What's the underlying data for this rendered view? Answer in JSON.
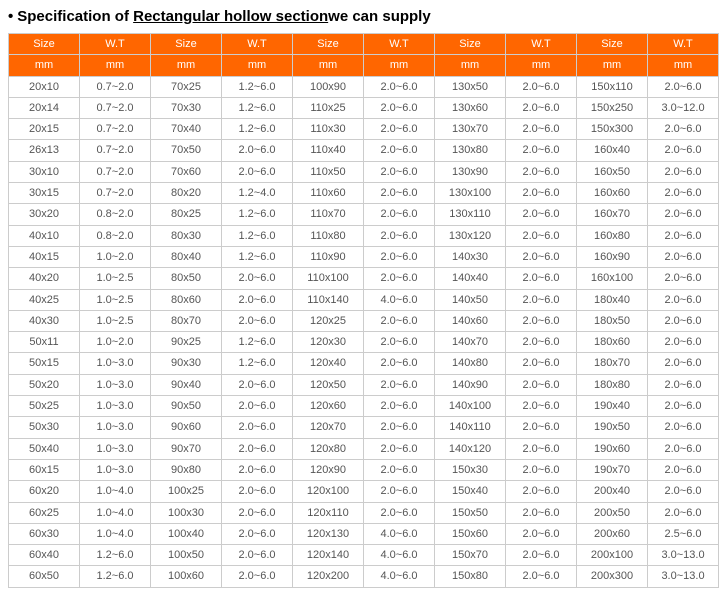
{
  "title_prefix": "Specification of ",
  "title_underline": "Rectangular hollow section",
  "title_suffix": "we can supply",
  "colors": {
    "header_bg": "#ff6600",
    "header_fg": "#ffffff",
    "border": "#cccccc",
    "cell_fg": "#555555"
  },
  "header_pair": {
    "size": "Size",
    "wt": "W.T"
  },
  "unit": "mm",
  "columns": [
    [
      {
        "s": "20x10",
        "w": "0.7~2.0"
      },
      {
        "s": "20x14",
        "w": "0.7~2.0"
      },
      {
        "s": "20x15",
        "w": "0.7~2.0"
      },
      {
        "s": "26x13",
        "w": "0.7~2.0"
      },
      {
        "s": "30x10",
        "w": "0.7~2.0"
      },
      {
        "s": "30x15",
        "w": "0.7~2.0"
      },
      {
        "s": "30x20",
        "w": "0.8~2.0"
      },
      {
        "s": "40x10",
        "w": "0.8~2.0"
      },
      {
        "s": "40x15",
        "w": "1.0~2.0"
      },
      {
        "s": "40x20",
        "w": "1.0~2.5"
      },
      {
        "s": "40x25",
        "w": "1.0~2.5"
      },
      {
        "s": "40x30",
        "w": "1.0~2.5"
      },
      {
        "s": "50x11",
        "w": "1.0~2.0"
      },
      {
        "s": "50x15",
        "w": "1.0~3.0"
      },
      {
        "s": "50x20",
        "w": "1.0~3.0"
      },
      {
        "s": "50x25",
        "w": "1.0~3.0"
      },
      {
        "s": "50x30",
        "w": "1.0~3.0"
      },
      {
        "s": "50x40",
        "w": "1.0~3.0"
      },
      {
        "s": "60x15",
        "w": "1.0~3.0"
      },
      {
        "s": "60x20",
        "w": "1.0~4.0"
      },
      {
        "s": "60x25",
        "w": "1.0~4.0"
      },
      {
        "s": "60x30",
        "w": "1.0~4.0"
      },
      {
        "s": "60x40",
        "w": "1.2~6.0"
      },
      {
        "s": "60x50",
        "w": "1.2~6.0"
      }
    ],
    [
      {
        "s": "70x25",
        "w": "1.2~6.0"
      },
      {
        "s": "70x30",
        "w": "1.2~6.0"
      },
      {
        "s": "70x40",
        "w": "1.2~6.0"
      },
      {
        "s": "70x50",
        "w": "2.0~6.0"
      },
      {
        "s": "70x60",
        "w": "2.0~6.0"
      },
      {
        "s": "80x20",
        "w": "1.2~4.0"
      },
      {
        "s": "80x25",
        "w": "1.2~6.0"
      },
      {
        "s": "80x30",
        "w": "1.2~6.0"
      },
      {
        "s": "80x40",
        "w": "1.2~6.0"
      },
      {
        "s": "80x50",
        "w": "2.0~6.0"
      },
      {
        "s": "80x60",
        "w": "2.0~6.0"
      },
      {
        "s": "80x70",
        "w": "2.0~6.0"
      },
      {
        "s": "90x25",
        "w": "1.2~6.0"
      },
      {
        "s": "90x30",
        "w": "1.2~6.0"
      },
      {
        "s": "90x40",
        "w": "2.0~6.0"
      },
      {
        "s": "90x50",
        "w": "2.0~6.0"
      },
      {
        "s": "90x60",
        "w": "2.0~6.0"
      },
      {
        "s": "90x70",
        "w": "2.0~6.0"
      },
      {
        "s": "90x80",
        "w": "2.0~6.0"
      },
      {
        "s": "100x25",
        "w": "2.0~6.0"
      },
      {
        "s": "100x30",
        "w": "2.0~6.0"
      },
      {
        "s": "100x40",
        "w": "2.0~6.0"
      },
      {
        "s": "100x50",
        "w": "2.0~6.0"
      },
      {
        "s": "100x60",
        "w": "2.0~6.0"
      }
    ],
    [
      {
        "s": "100x90",
        "w": "2.0~6.0"
      },
      {
        "s": "110x25",
        "w": "2.0~6.0"
      },
      {
        "s": "110x30",
        "w": "2.0~6.0"
      },
      {
        "s": "110x40",
        "w": "2.0~6.0"
      },
      {
        "s": "110x50",
        "w": "2.0~6.0"
      },
      {
        "s": "110x60",
        "w": "2.0~6.0"
      },
      {
        "s": "110x70",
        "w": "2.0~6.0"
      },
      {
        "s": "110x80",
        "w": "2.0~6.0"
      },
      {
        "s": "110x90",
        "w": "2.0~6.0"
      },
      {
        "s": "110x100",
        "w": "2.0~6.0"
      },
      {
        "s": "110x140",
        "w": "4.0~6.0"
      },
      {
        "s": "120x25",
        "w": "2.0~6.0"
      },
      {
        "s": "120x30",
        "w": "2.0~6.0"
      },
      {
        "s": "120x40",
        "w": "2.0~6.0"
      },
      {
        "s": "120x50",
        "w": "2.0~6.0"
      },
      {
        "s": "120x60",
        "w": "2.0~6.0"
      },
      {
        "s": "120x70",
        "w": "2.0~6.0"
      },
      {
        "s": "120x80",
        "w": "2.0~6.0"
      },
      {
        "s": "120x90",
        "w": "2.0~6.0"
      },
      {
        "s": "120x100",
        "w": "2.0~6.0"
      },
      {
        "s": "120x110",
        "w": "2.0~6.0"
      },
      {
        "s": "120x130",
        "w": "4.0~6.0"
      },
      {
        "s": "120x140",
        "w": "4.0~6.0"
      },
      {
        "s": "120x200",
        "w": "4.0~6.0"
      }
    ],
    [
      {
        "s": "130x50",
        "w": "2.0~6.0"
      },
      {
        "s": "130x60",
        "w": "2.0~6.0"
      },
      {
        "s": "130x70",
        "w": "2.0~6.0"
      },
      {
        "s": "130x80",
        "w": "2.0~6.0"
      },
      {
        "s": "130x90",
        "w": "2.0~6.0"
      },
      {
        "s": "130x100",
        "w": "2.0~6.0"
      },
      {
        "s": "130x110",
        "w": "2.0~6.0"
      },
      {
        "s": "130x120",
        "w": "2.0~6.0"
      },
      {
        "s": "140x30",
        "w": "2.0~6.0"
      },
      {
        "s": "140x40",
        "w": "2.0~6.0"
      },
      {
        "s": "140x50",
        "w": "2.0~6.0"
      },
      {
        "s": "140x60",
        "w": "2.0~6.0"
      },
      {
        "s": "140x70",
        "w": "2.0~6.0"
      },
      {
        "s": "140x80",
        "w": "2.0~6.0"
      },
      {
        "s": "140x90",
        "w": "2.0~6.0"
      },
      {
        "s": "140x100",
        "w": "2.0~6.0"
      },
      {
        "s": "140x110",
        "w": "2.0~6.0"
      },
      {
        "s": "140x120",
        "w": "2.0~6.0"
      },
      {
        "s": "150x30",
        "w": "2.0~6.0"
      },
      {
        "s": "150x40",
        "w": "2.0~6.0"
      },
      {
        "s": "150x50",
        "w": "2.0~6.0"
      },
      {
        "s": "150x60",
        "w": "2.0~6.0"
      },
      {
        "s": "150x70",
        "w": "2.0~6.0"
      },
      {
        "s": "150x80",
        "w": "2.0~6.0"
      }
    ],
    [
      {
        "s": "150x110",
        "w": "2.0~6.0"
      },
      {
        "s": "150x250",
        "w": "3.0~12.0"
      },
      {
        "s": "150x300",
        "w": "2.0~6.0"
      },
      {
        "s": "160x40",
        "w": "2.0~6.0"
      },
      {
        "s": "160x50",
        "w": "2.0~6.0"
      },
      {
        "s": "160x60",
        "w": "2.0~6.0"
      },
      {
        "s": "160x70",
        "w": "2.0~6.0"
      },
      {
        "s": "160x80",
        "w": "2.0~6.0"
      },
      {
        "s": "160x90",
        "w": "2.0~6.0"
      },
      {
        "s": "160x100",
        "w": "2.0~6.0"
      },
      {
        "s": "180x40",
        "w": "2.0~6.0"
      },
      {
        "s": "180x50",
        "w": "2.0~6.0"
      },
      {
        "s": "180x60",
        "w": "2.0~6.0"
      },
      {
        "s": "180x70",
        "w": "2.0~6.0"
      },
      {
        "s": "180x80",
        "w": "2.0~6.0"
      },
      {
        "s": "190x40",
        "w": "2.0~6.0"
      },
      {
        "s": "190x50",
        "w": "2.0~6.0"
      },
      {
        "s": "190x60",
        "w": "2.0~6.0"
      },
      {
        "s": "190x70",
        "w": "2.0~6.0"
      },
      {
        "s": "200x40",
        "w": "2.0~6.0"
      },
      {
        "s": "200x50",
        "w": "2.0~6.0"
      },
      {
        "s": "200x60",
        "w": "2.5~6.0"
      },
      {
        "s": "200x100",
        "w": "3.0~13.0"
      },
      {
        "s": "200x300",
        "w": "3.0~13.0"
      }
    ]
  ]
}
